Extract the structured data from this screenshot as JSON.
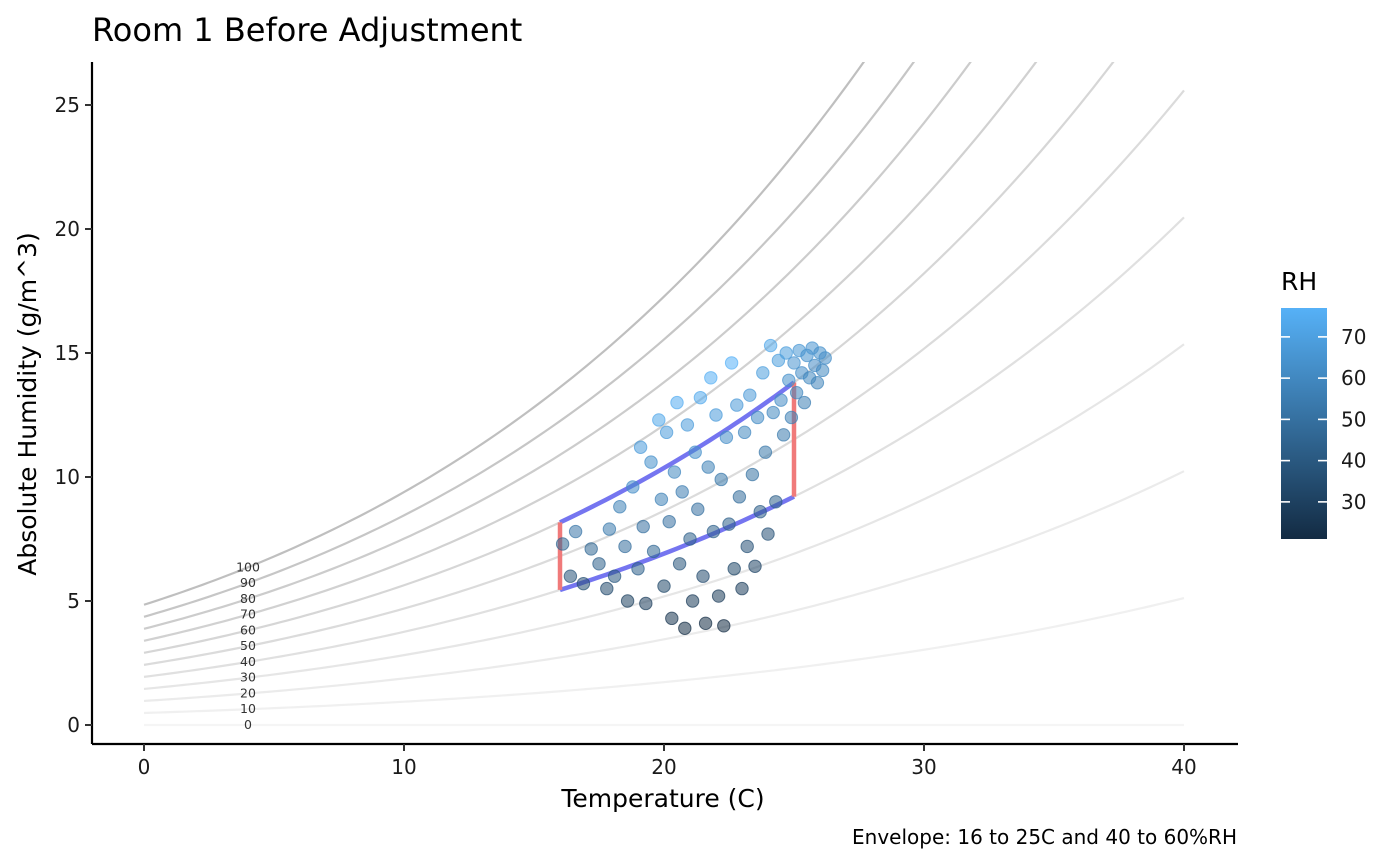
{
  "chart_data": {
    "type": "scatter",
    "title": "Room 1 Before Adjustment",
    "xlabel": "Temperature (C)",
    "ylabel": "Absolute Humidity (g/m^3)",
    "caption": "Envelope: 16 to 25C and 40 to 60%RH",
    "xlim": [
      -2,
      42
    ],
    "ylim": [
      -0.8,
      26.8
    ],
    "x_ticks": [
      "0",
      "10",
      "20",
      "30",
      "40"
    ],
    "y_ticks": [
      "0",
      "5",
      "10",
      "15",
      "20",
      "25"
    ],
    "grid": false,
    "rh_curves": {
      "levels": [
        0,
        10,
        20,
        30,
        40,
        50,
        60,
        70,
        80,
        90,
        100
      ],
      "labels": [
        "0",
        "10",
        "20",
        "30",
        "40",
        "50",
        "60",
        "70",
        "80",
        "90",
        "100"
      ],
      "label_temperature": 4,
      "x_range": [
        0,
        40
      ],
      "colors": [
        "#f5f5f5",
        "#f0f0f0",
        "#ebebeb",
        "#e6e6e6",
        "#e0e0e0",
        "#dbdbdb",
        "#d6d6d6",
        "#d1d1d1",
        "#cccccc",
        "#c6c6c6",
        "#bfbfbf"
      ]
    },
    "envelope": {
      "temp_min": 16,
      "temp_max": 25,
      "rh_min": 40,
      "rh_max": 60,
      "temp_color": "#f07a7a",
      "rh_color": "#7575f0"
    },
    "legend": {
      "title": "RH",
      "position": "right",
      "range": [
        21,
        77
      ],
      "ticks": [
        "30",
        "40",
        "50",
        "60",
        "70"
      ],
      "low_color": "#132b43",
      "high_color": "#56b1f7"
    },
    "series": [
      {
        "type": "scatter",
        "color_by": "RH",
        "points": [
          [
            16.1,
            7.3,
            46
          ],
          [
            16.4,
            6.0,
            38
          ],
          [
            16.6,
            7.8,
            52
          ],
          [
            16.9,
            5.7,
            36
          ],
          [
            17.2,
            7.1,
            46
          ],
          [
            17.5,
            6.5,
            43
          ],
          [
            17.8,
            5.5,
            34
          ],
          [
            17.9,
            7.9,
            54
          ],
          [
            18.1,
            6.0,
            40
          ],
          [
            18.3,
            8.8,
            57
          ],
          [
            18.5,
            7.2,
            49
          ],
          [
            18.6,
            5.0,
            30
          ],
          [
            18.8,
            9.6,
            62
          ],
          [
            19.0,
            6.3,
            43
          ],
          [
            19.1,
            11.2,
            68
          ],
          [
            19.2,
            8.0,
            50
          ],
          [
            19.3,
            4.9,
            29
          ],
          [
            19.5,
            10.6,
            63
          ],
          [
            19.6,
            7.0,
            46
          ],
          [
            19.8,
            12.3,
            73
          ],
          [
            19.9,
            9.1,
            57
          ],
          [
            20.0,
            5.6,
            33
          ],
          [
            20.1,
            11.8,
            68
          ],
          [
            20.2,
            8.2,
            50
          ],
          [
            20.3,
            4.3,
            25
          ],
          [
            20.4,
            10.2,
            60
          ],
          [
            20.5,
            13.0,
            75
          ],
          [
            20.6,
            6.5,
            38
          ],
          [
            20.7,
            9.4,
            55
          ],
          [
            20.8,
            3.9,
            22
          ],
          [
            20.9,
            12.1,
            68
          ],
          [
            21.0,
            7.5,
            43
          ],
          [
            21.1,
            5.0,
            28
          ],
          [
            21.2,
            11.0,
            63
          ],
          [
            21.3,
            8.7,
            50
          ],
          [
            21.4,
            13.2,
            74
          ],
          [
            21.5,
            6.0,
            34
          ],
          [
            21.6,
            4.1,
            22
          ],
          [
            21.7,
            10.4,
            57
          ],
          [
            21.8,
            14.0,
            76
          ],
          [
            21.9,
            7.8,
            43
          ],
          [
            22.0,
            12.5,
            68
          ],
          [
            22.1,
            5.2,
            28
          ],
          [
            22.2,
            9.9,
            53
          ],
          [
            22.3,
            4.0,
            21
          ],
          [
            22.4,
            11.6,
            62
          ],
          [
            22.5,
            8.1,
            43
          ],
          [
            22.6,
            14.6,
            77
          ],
          [
            22.7,
            6.3,
            33
          ],
          [
            22.8,
            12.9,
            67
          ],
          [
            22.9,
            9.2,
            48
          ],
          [
            23.0,
            5.5,
            29
          ],
          [
            23.1,
            11.8,
            60
          ],
          [
            23.2,
            7.2,
            37
          ],
          [
            23.3,
            13.3,
            67
          ],
          [
            23.4,
            10.1,
            51
          ],
          [
            23.5,
            6.4,
            32
          ],
          [
            23.6,
            12.4,
            61
          ],
          [
            23.7,
            8.6,
            42
          ],
          [
            23.8,
            14.2,
            69
          ],
          [
            23.9,
            11.0,
            53
          ],
          [
            24.0,
            7.7,
            37
          ],
          [
            24.1,
            15.3,
            73
          ],
          [
            24.2,
            12.6,
            60
          ],
          [
            24.3,
            9.0,
            43
          ],
          [
            24.4,
            14.7,
            69
          ],
          [
            24.5,
            13.1,
            61
          ],
          [
            24.6,
            11.7,
            54
          ],
          [
            24.7,
            15.0,
            69
          ],
          [
            24.8,
            13.9,
            63
          ],
          [
            24.9,
            12.4,
            56
          ],
          [
            25.0,
            14.6,
            65
          ],
          [
            25.1,
            13.4,
            59
          ],
          [
            25.2,
            15.1,
            66
          ],
          [
            25.3,
            14.2,
            62
          ],
          [
            25.4,
            13.0,
            56
          ],
          [
            25.5,
            14.9,
            64
          ],
          [
            25.6,
            14.0,
            60
          ],
          [
            25.7,
            15.2,
            65
          ],
          [
            25.8,
            14.5,
            61
          ],
          [
            25.9,
            13.8,
            58
          ],
          [
            26.0,
            15.0,
            63
          ],
          [
            26.1,
            14.3,
            60
          ],
          [
            26.2,
            14.8,
            62
          ]
        ]
      }
    ]
  }
}
